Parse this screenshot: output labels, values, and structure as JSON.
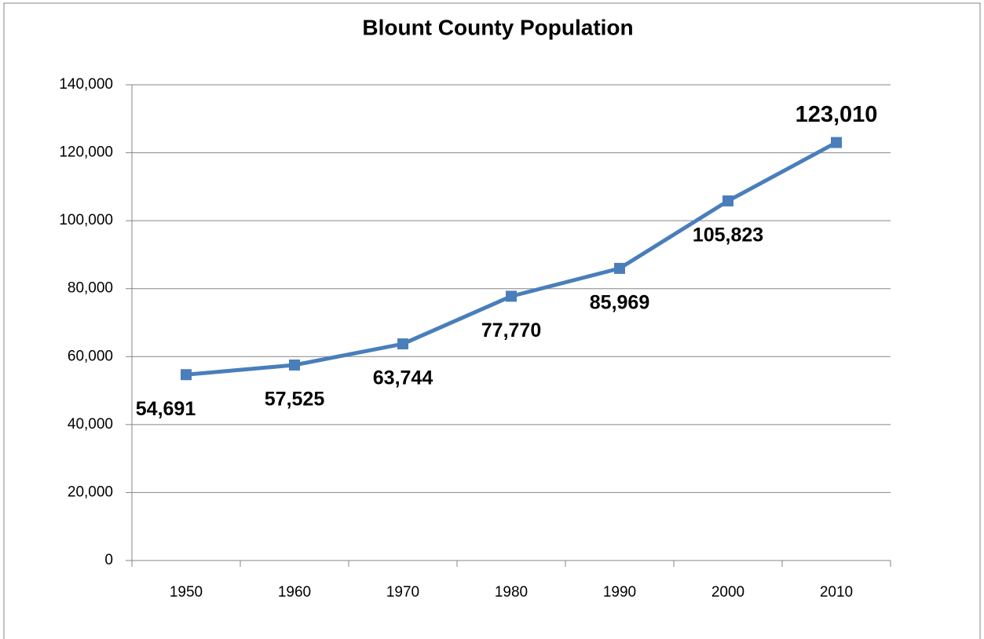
{
  "chart_data": {
    "type": "line",
    "title": "Blount County Population",
    "categories": [
      "1950",
      "1960",
      "1970",
      "1980",
      "1990",
      "2000",
      "2010"
    ],
    "values": [
      54691,
      57525,
      63744,
      77770,
      85969,
      105823,
      123010
    ],
    "value_labels": [
      "54,691",
      "57,525",
      "63,744",
      "77,770",
      "85,969",
      "105,823",
      "123,010"
    ],
    "color": "#4a7ebb",
    "ylim": [
      0,
      140000
    ],
    "yticks": [
      0,
      {
        "value": 20000,
        "label": "20,000"
      },
      {
        "value": 40000,
        "label": "40,000"
      },
      {
        "value": 60000,
        "label": "60,000"
      },
      {
        "value": 80000,
        "label": "80,000"
      },
      {
        "value": 100000,
        "label": "100,000"
      },
      {
        "value": 120000,
        "label": "120,000"
      },
      {
        "value": 140000,
        "label": "140,000"
      }
    ],
    "grid": true
  }
}
